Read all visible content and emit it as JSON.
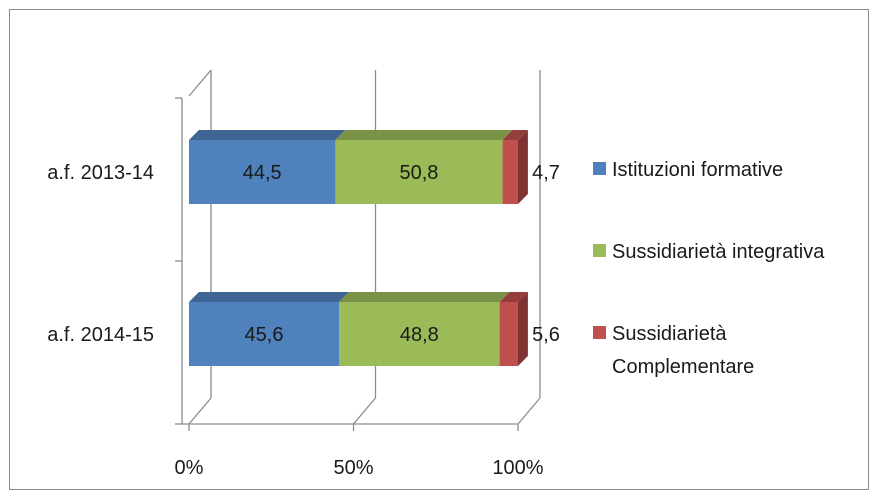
{
  "chart_data": {
    "type": "bar",
    "orientation": "horizontal",
    "stacking": "percent",
    "categories": [
      "a.f. 2013-14",
      "a.f. 2014-15"
    ],
    "series": [
      {
        "name": "Istituzioni formative",
        "values": [
          44.5,
          45.6
        ],
        "labels": [
          "44,5",
          "45,6"
        ],
        "color": "#4f81bd"
      },
      {
        "name": "Sussidiarietà integrativa",
        "values": [
          50.8,
          48.8
        ],
        "labels": [
          "50,8",
          "48,8"
        ],
        "color": "#9bbb59"
      },
      {
        "name": "Sussidiarietà Complementare",
        "values": [
          4.7,
          5.6
        ],
        "labels": [
          "4,7",
          "5,6"
        ],
        "color": "#c0504d"
      }
    ],
    "x_ticks": [
      "0%",
      "50%",
      "100%"
    ],
    "xlim": [
      0,
      100
    ],
    "grid": true,
    "legend_position": "right",
    "three_d": true
  }
}
